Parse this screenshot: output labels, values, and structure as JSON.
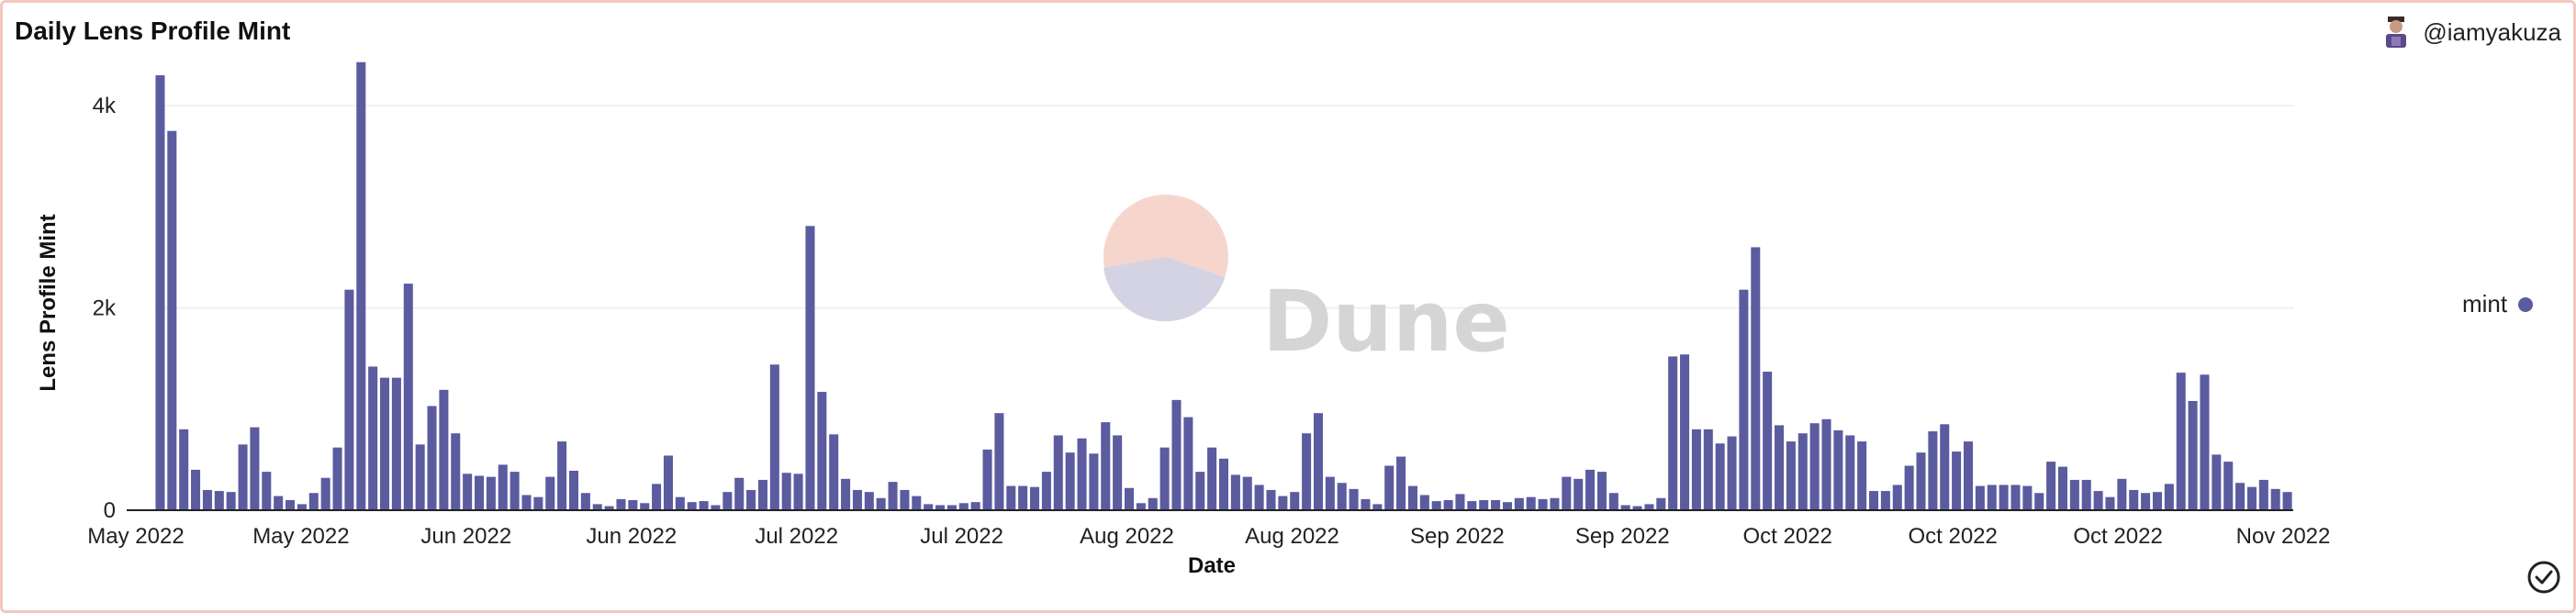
{
  "header": {
    "title": "Daily Lens Profile Mint",
    "author": "@iamyakuza",
    "avatar_icon": "user-avatar-icon"
  },
  "watermark": "Dune",
  "colors": {
    "bar": "#5b5ba0",
    "border": "#f3c7bd"
  },
  "chart_data": {
    "type": "bar",
    "title": "Daily Lens Profile Mint",
    "xlabel": "Date",
    "ylabel": "Lens Profile Mint",
    "ylim": [
      0,
      4500
    ],
    "yticks": [
      {
        "value": 0,
        "label": "0"
      },
      {
        "value": 2000,
        "label": "2k"
      },
      {
        "value": 4000,
        "label": "4k"
      }
    ],
    "xticks": [
      "May 2022",
      "May 2022",
      "Jun 2022",
      "Jun 2022",
      "Jul 2022",
      "Jul 2022",
      "Aug 2022",
      "Aug 2022",
      "Sep 2022",
      "Sep 2022",
      "Oct 2022",
      "Oct 2022",
      "Oct 2022",
      "Nov 2022"
    ],
    "grid": true,
    "legend": "right",
    "series": [
      {
        "name": "mint",
        "values": [
          4300,
          3750,
          800,
          400,
          200,
          190,
          180,
          650,
          820,
          380,
          140,
          100,
          60,
          170,
          320,
          620,
          2180,
          4430,
          1420,
          1310,
          1310,
          2240,
          650,
          1030,
          1190,
          760,
          360,
          340,
          330,
          450,
          380,
          150,
          130,
          330,
          680,
          390,
          170,
          60,
          40,
          110,
          100,
          70,
          260,
          540,
          130,
          80,
          90,
          50,
          180,
          320,
          200,
          300,
          1440,
          370,
          360,
          2810,
          1170,
          750,
          310,
          200,
          180,
          120,
          280,
          200,
          140,
          60,
          50,
          50,
          70,
          80,
          600,
          960,
          240,
          240,
          230,
          380,
          740,
          570,
          710,
          560,
          870,
          740,
          220,
          70,
          120,
          620,
          1090,
          920,
          380,
          620,
          510,
          350,
          330,
          250,
          200,
          140,
          180,
          760,
          960,
          330,
          270,
          210,
          110,
          60,
          440,
          530,
          240,
          150,
          90,
          100,
          160,
          90,
          100,
          100,
          80,
          120,
          130,
          110,
          120,
          330,
          310,
          400,
          380,
          170,
          50,
          40,
          60,
          120,
          1520,
          1540,
          800,
          800,
          660,
          730,
          2180,
          2600,
          1370,
          840,
          680,
          760,
          860,
          900,
          790,
          740,
          680,
          190,
          190,
          250,
          440,
          570,
          780,
          850,
          580,
          680,
          240,
          250,
          250,
          250,
          240,
          170,
          480,
          430,
          300,
          300,
          190,
          130,
          310,
          200,
          170,
          180,
          260,
          1360,
          1080,
          1340,
          550,
          480,
          270,
          230,
          300,
          210,
          180
        ]
      }
    ]
  }
}
